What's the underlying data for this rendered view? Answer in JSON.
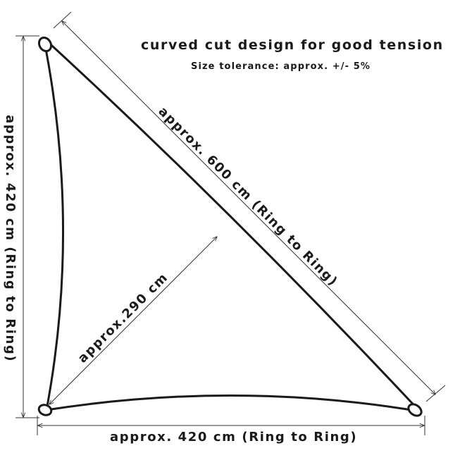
{
  "header": {
    "title": "curved cut design for good tension",
    "subtitle": "Size tolerance: approx. +/- 5%"
  },
  "dimensions": {
    "hypotenuse": "approx. 600 cm (Ring to Ring)",
    "left_side": "approx. 420 cm (Ring to Ring)",
    "bottom_side": "approx. 420 cm (Ring to Ring)",
    "height": "approx.290 cm"
  },
  "colors": {
    "line": "#1a1a1a",
    "background": "#ffffff"
  }
}
